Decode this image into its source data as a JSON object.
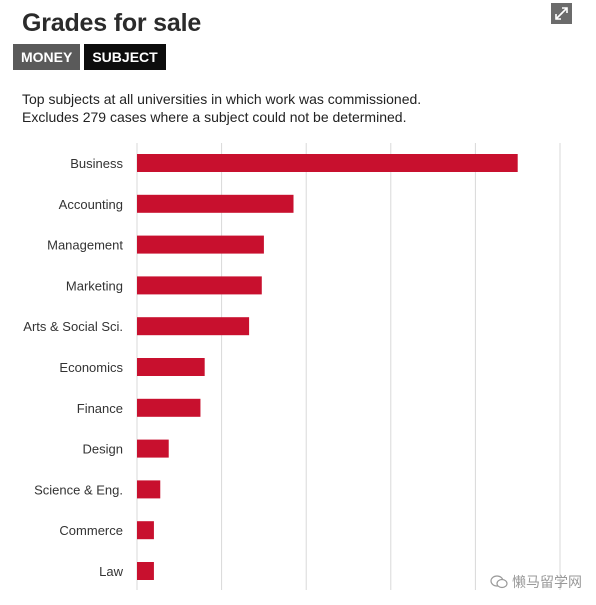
{
  "header": {
    "title": "Grades for sale",
    "tabs": [
      {
        "label": "MONEY",
        "active": false
      },
      {
        "label": "SUBJECT",
        "active": true
      }
    ],
    "expand_icon": "expand-icon"
  },
  "description": {
    "line1": "Top subjects at all universities in which work was commissioned.",
    "line2": "Excludes 279 cases where a subject could not be determined."
  },
  "watermark": {
    "text": "懒马留学网",
    "icon": "wechat-icon"
  },
  "colors": {
    "bar": "#c8102e",
    "grid": "#d9d9d9",
    "label": "#333333"
  },
  "chart_data": {
    "type": "bar",
    "orientation": "horizontal",
    "categories": [
      "Business",
      "Accounting",
      "Management",
      "Marketing",
      "Arts & Social Sci.",
      "Economics",
      "Finance",
      "Design",
      "Science & Eng.",
      "Commerce",
      "Law"
    ],
    "values": [
      90,
      37,
      30,
      29.5,
      26.5,
      16,
      15,
      7.5,
      5.5,
      4,
      4
    ],
    "xlim": [
      0,
      100
    ],
    "grid": true,
    "title": "",
    "xlabel": "",
    "ylabel": ""
  }
}
